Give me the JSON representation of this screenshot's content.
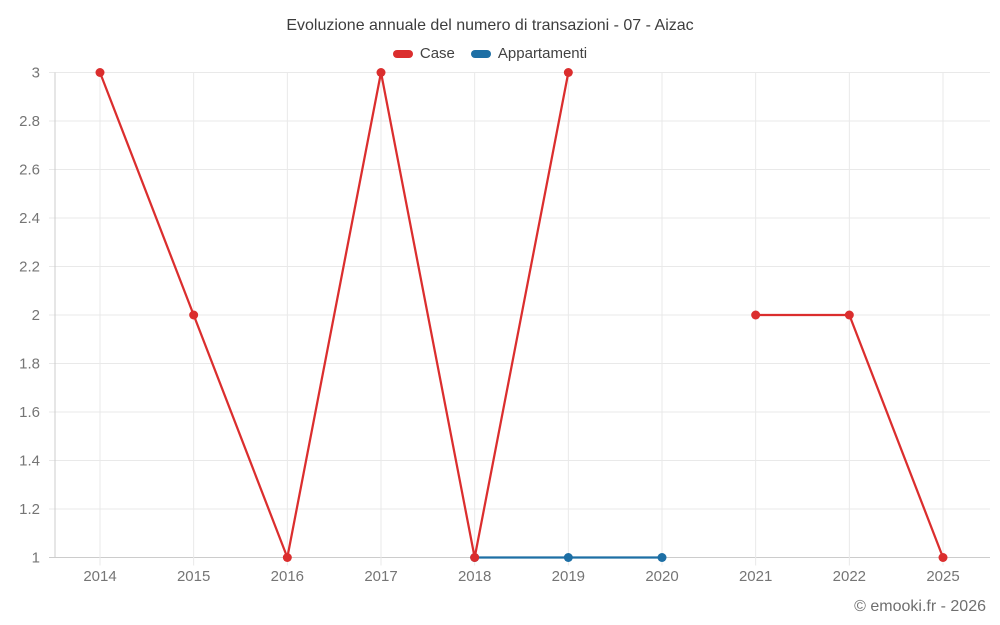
{
  "footer": "© emooki.fr - 2026",
  "colors": {
    "grid": "#e9e9e9",
    "axis": "#cccccc",
    "tick_text": "#757575",
    "title_text": "#3d3d3d",
    "legend_text": "#424242",
    "footer_text": "#6f6f6f",
    "background": "#ffffff"
  },
  "chart_data": {
    "type": "line",
    "title": "Evoluzione annuale del numero di transazioni - 07 - Aizac",
    "xlabel": "",
    "ylabel": "",
    "categories": [
      "2014",
      "2015",
      "2016",
      "2017",
      "2018",
      "2019",
      "2020",
      "2021",
      "2022",
      "2025"
    ],
    "series": [
      {
        "name": "Case",
        "color": "#db2e2e",
        "values": [
          3,
          2,
          1,
          3,
          1,
          3,
          null,
          2,
          2,
          1
        ]
      },
      {
        "name": "Appartamenti",
        "color": "#1d6fa5",
        "values": [
          null,
          null,
          null,
          null,
          1,
          1,
          1,
          null,
          null,
          null
        ]
      }
    ],
    "ylim": [
      1,
      3
    ],
    "yticks": [
      1,
      1.2,
      1.4,
      1.6,
      1.8,
      2,
      2.2,
      2.4,
      2.6,
      2.8,
      3
    ],
    "grid": true,
    "legend_position": "top",
    "marker": "circle"
  }
}
